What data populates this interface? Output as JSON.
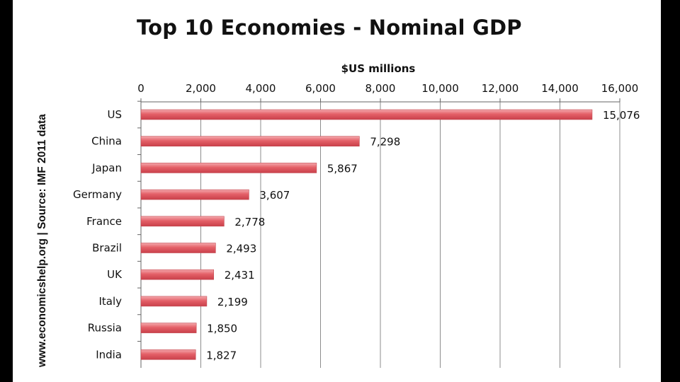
{
  "chart_data": {
    "type": "bar",
    "orientation": "horizontal",
    "title": "Top 10 Economies - Nominal GDP",
    "xlabel": "$US millions",
    "ylabel": "",
    "source": "www.economicshelp.org | Source: IMF 2011 data",
    "categories": [
      "US",
      "China",
      "Japan",
      "Germany",
      "France",
      "Brazil",
      "UK",
      "Italy",
      "Russia",
      "India"
    ],
    "values": [
      15076,
      7298,
      5867,
      3607,
      2778,
      2493,
      2431,
      2199,
      1850,
      1827
    ],
    "value_labels": [
      "15,076",
      "7,298",
      "5,867",
      "3,607",
      "2,778",
      "2,493",
      "2,431",
      "2,199",
      "1,850",
      "1,827"
    ],
    "xlim": [
      0,
      16000
    ],
    "ticks": [
      0,
      2000,
      4000,
      6000,
      8000,
      10000,
      12000,
      14000,
      16000
    ],
    "tick_labels": [
      "0",
      "2,000",
      "4,000",
      "6,000",
      "8,000",
      "10,000",
      "12,000",
      "14,000",
      "16,000"
    ],
    "x_axis_position": "top",
    "grid": true,
    "bar_color": "#e46068"
  }
}
